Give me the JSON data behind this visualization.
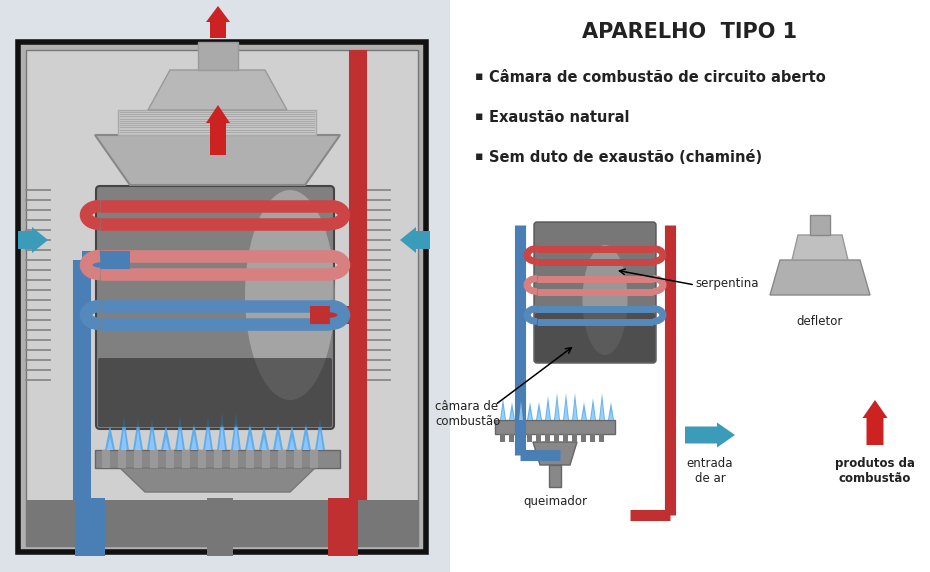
{
  "title": "APARELHO  TIPO 1",
  "bg_color": "#dde2e8",
  "white": "#ffffff",
  "dark": "#222222",
  "gray1": "#aaaaaa",
  "gray2": "#bbbbbb",
  "gray3": "#cccccc",
  "gray4": "#888888",
  "gray5": "#666666",
  "gray6": "#999999",
  "arrow_cyan": "#3a9cb8",
  "arrow_red": "#cc2222",
  "pipe_red": "#c03030",
  "pipe_blue": "#4a7fb5",
  "coil_red1": "#cc4444",
  "coil_pink": "#d88080",
  "coil_blue": "#5588bb",
  "bullet_points": [
    "Câmara de combustão de circuito aberto",
    "Exaustão natural",
    "Sem duto de exaustão (chaminé)"
  ],
  "labels": {
    "camara_combustao": "câmara de\ncombustão",
    "serpentina": "serpentina",
    "defletor": "defletor",
    "queimador": "queimador",
    "entrada_ar": "entrada\nde ar",
    "produtos": "produtos da\ncombustão"
  }
}
